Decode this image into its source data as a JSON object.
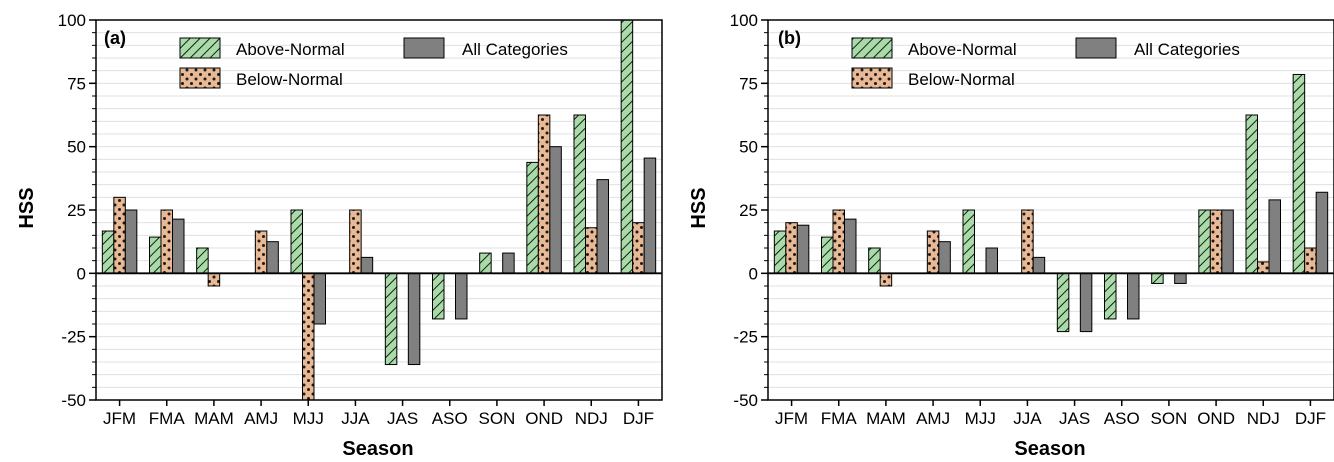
{
  "colors": {
    "above": "#a8dba8",
    "above_hatch": "#1a1a1a",
    "below": "#e8b994",
    "below_dots": "#1a1a1a",
    "all": "#808080",
    "grid": "#e0e0e0"
  },
  "legend": {
    "above": "Above-Normal",
    "below": "Below-Normal",
    "all": "All Categories"
  },
  "chart_data": [
    {
      "type": "bar",
      "panel_label": "(a)",
      "xlabel": "Season",
      "ylabel": "HSS",
      "ylim": [
        -50,
        100
      ],
      "yticks": [
        -50,
        -25,
        0,
        25,
        50,
        75,
        100
      ],
      "grid": true,
      "legend_position": "top-left",
      "categories": [
        "JFM",
        "FMA",
        "MAM",
        "AMJ",
        "MJJ",
        "JJA",
        "JAS",
        "ASO",
        "SON",
        "OND",
        "NDJ",
        "DJF"
      ],
      "series": [
        {
          "name": "Above-Normal",
          "values": [
            16.7,
            14.3,
            10,
            0,
            25,
            0,
            -36,
            -18,
            8,
            43.8,
            62.5,
            100
          ]
        },
        {
          "name": "Below-Normal",
          "values": [
            30,
            25,
            -5,
            16.7,
            -50,
            25,
            0,
            0,
            0,
            62.5,
            18,
            20
          ]
        },
        {
          "name": "All Categories",
          "values": [
            25,
            21.4,
            0,
            12.5,
            -20,
            6.3,
            -36,
            -18,
            8,
            50,
            37,
            45.5
          ]
        }
      ]
    },
    {
      "type": "bar",
      "panel_label": "(b)",
      "xlabel": "Season",
      "ylabel": "HSS",
      "ylim": [
        -50,
        100
      ],
      "yticks": [
        -50,
        -25,
        0,
        25,
        50,
        75,
        100
      ],
      "grid": true,
      "legend_position": "top-left",
      "categories": [
        "JFM",
        "FMA",
        "MAM",
        "AMJ",
        "MJJ",
        "JJA",
        "JAS",
        "ASO",
        "SON",
        "OND",
        "NDJ",
        "DJF"
      ],
      "series": [
        {
          "name": "Above-Normal",
          "values": [
            16.7,
            14.3,
            10,
            0,
            25,
            0,
            -23,
            -18,
            -4,
            25,
            62.5,
            78.5
          ]
        },
        {
          "name": "Below-Normal",
          "values": [
            20,
            25,
            -5,
            16.7,
            0,
            25,
            0,
            0,
            0,
            25,
            4.5,
            10
          ]
        },
        {
          "name": "All Categories",
          "values": [
            19,
            21.4,
            0,
            12.5,
            10,
            6.3,
            -23,
            -18,
            -4,
            25,
            29,
            32
          ]
        }
      ]
    }
  ]
}
